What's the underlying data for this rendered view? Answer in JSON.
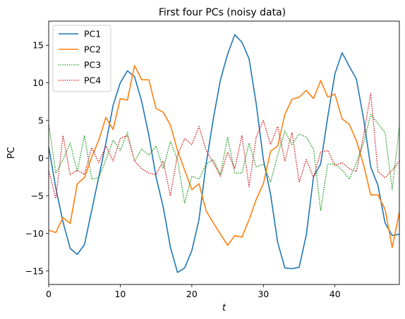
{
  "chart_data": {
    "type": "line",
    "title": "First four PCs (noisy data)",
    "xlabel": "t",
    "ylabel": "PC",
    "xlim": [
      0,
      49
    ],
    "ylim": [
      -16.8,
      18.2
    ],
    "xticks": [
      0,
      10,
      20,
      30,
      40
    ],
    "yticks": [
      -15,
      -10,
      -5,
      0,
      5,
      10,
      15
    ],
    "grid": false,
    "legend_location": "upper-left",
    "x": [
      0,
      1,
      2,
      3,
      4,
      5,
      6,
      7,
      8,
      9,
      10,
      11,
      12,
      13,
      14,
      15,
      16,
      17,
      18,
      19,
      20,
      21,
      22,
      23,
      24,
      25,
      26,
      27,
      28,
      29,
      30,
      31,
      32,
      33,
      34,
      35,
      36,
      37,
      38,
      39,
      40,
      41,
      42,
      43,
      44,
      45,
      46,
      47,
      48,
      49
    ],
    "series": [
      {
        "name": "PC1",
        "color": "#1f77b4",
        "style": "solid",
        "values": [
          1.5,
          -4.0,
          -8.5,
          -12.0,
          -12.8,
          -11.5,
          -7.0,
          -2.5,
          2.0,
          7.0,
          10.0,
          11.6,
          10.8,
          7.5,
          3.0,
          -2.5,
          -6.5,
          -11.8,
          -15.2,
          -14.6,
          -12.3,
          -8.2,
          -0.8,
          5.2,
          10.4,
          13.8,
          16.4,
          15.4,
          13.2,
          7.2,
          -0.2,
          -4.8,
          -11.2,
          -14.6,
          -14.7,
          -14.5,
          -10.2,
          -2.5,
          -0.8,
          5.5,
          11.2,
          14.0,
          12.2,
          10.5,
          5.2,
          -1.2,
          -3.6,
          -8.6,
          -10.3,
          -10.1
        ]
      },
      {
        "name": "PC2",
        "color": "#ff7f0e",
        "style": "solid",
        "values": [
          -9.6,
          -9.9,
          -7.9,
          -8.7,
          -3.4,
          -2.6,
          0.1,
          2.4,
          5.4,
          3.8,
          7.9,
          7.7,
          12.3,
          10.4,
          10.4,
          6.6,
          6.1,
          4.4,
          1.0,
          -1.6,
          -4.2,
          -3.4,
          -7.0,
          -8.6,
          -10.1,
          -11.6,
          -10.3,
          -10.5,
          -8.2,
          -5.5,
          -3.4,
          0.9,
          1.6,
          5.8,
          7.8,
          8.1,
          9.0,
          7.9,
          10.3,
          8.1,
          8.5,
          5.2,
          4.5,
          2.3,
          -0.9,
          -4.9,
          -4.9,
          -6.8,
          -11.9,
          -7.2
        ]
      },
      {
        "name": "PC3",
        "color": "#2ca02c",
        "style": "dotted",
        "values": [
          4.5,
          -2.0,
          -0.2,
          2.0,
          -1.8,
          3.0,
          -2.8,
          -2.6,
          -0.2,
          2.4,
          1.0,
          3.4,
          -0.4,
          1.2,
          0.4,
          1.6,
          -1.4,
          2.2,
          -0.2,
          -6.0,
          -2.4,
          -2.8,
          -0.8,
          -0.2,
          -2.2,
          2.8,
          -2.0,
          -2.0,
          2.0,
          -1.2,
          -0.8,
          -3.2,
          0.4,
          3.6,
          1.8,
          3.2,
          2.8,
          1.2,
          -7.0,
          -0.8,
          -0.8,
          -1.6,
          -2.8,
          -0.6,
          2.0,
          5.8,
          4.6,
          3.4,
          -4.2,
          4.2
        ]
      },
      {
        "name": "PC4",
        "color": "#d62728",
        "style": "dotted",
        "values": [
          -1.6,
          -5.4,
          3.0,
          -2.2,
          -1.6,
          -2.2,
          1.4,
          -0.6,
          1.6,
          -0.4,
          2.6,
          3.0,
          -0.4,
          -1.4,
          -2.0,
          -2.2,
          -0.4,
          -5.0,
          0.4,
          2.6,
          1.8,
          4.2,
          1.0,
          -0.6,
          -2.4,
          0.8,
          -1.4,
          3.0,
          -3.8,
          2.8,
          5.0,
          1.8,
          4.2,
          -0.4,
          3.4,
          -3.2,
          -0.2,
          -2.6,
          0.8,
          1.0,
          -1.0,
          -0.6,
          -1.4,
          -1.8,
          3.0,
          8.6,
          -1.8,
          -2.6,
          -1.6,
          -0.4
        ]
      }
    ]
  }
}
